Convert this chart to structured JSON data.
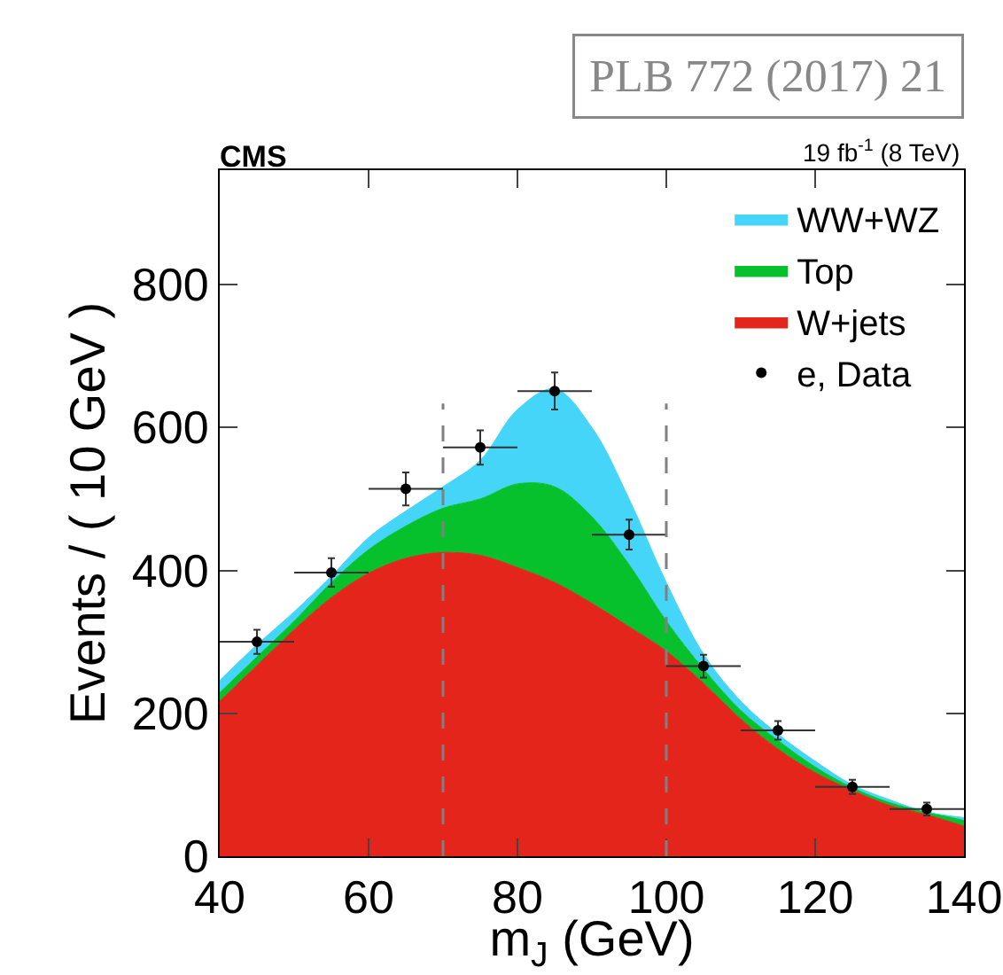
{
  "chart_data": {
    "type": "area",
    "title": "CMS",
    "subtitle": "19 fb$^{-1}$ (8 TeV)",
    "xlabel": "m$_{J}$ (GeV)",
    "ylabel": "Events / ( 10 GeV )",
    "annotations": [
      "PLB 772 (2017) 21"
    ],
    "x": [
      40,
      45,
      50,
      55,
      60,
      65,
      70,
      75,
      80,
      85,
      90,
      95,
      100,
      105,
      110,
      115,
      120,
      125,
      130,
      135,
      140
    ],
    "stacked": true,
    "series": [
      {
        "name": "W+jets",
        "color": "#e3251b",
        "values": [
          217,
          267,
          317,
          362,
          396,
          417,
          425,
          421,
          404,
          383,
          354,
          321,
          287,
          242,
          192,
          150,
          117,
          92,
          71,
          58,
          42
        ]
      },
      {
        "name": "Top",
        "color": "#06c12c",
        "values": [
          12,
          12,
          12,
          21,
          33,
          45,
          62,
          79,
          117,
          134,
          121,
          87,
          42,
          20,
          12,
          12,
          8,
          4,
          4,
          4,
          8
        ]
      },
      {
        "name": "WW+WZ",
        "color": "#45d5f9",
        "values": [
          17,
          17,
          13,
          9,
          17,
          21,
          30,
          54,
          104,
          137,
          125,
          92,
          54,
          21,
          13,
          9,
          8,
          4,
          4,
          0,
          4
        ]
      },
      {
        "name": "e, Data",
        "type": "scatter",
        "color": "#000000",
        "marker": "circle",
        "x": [
          45,
          55,
          65,
          75,
          85,
          95,
          105,
          115,
          125,
          135
        ],
        "values": [
          300,
          397,
          514,
          572,
          651,
          450,
          266,
          176,
          97,
          66
        ],
        "errors": [
          17,
          20,
          23,
          24,
          26,
          21,
          16,
          13,
          10,
          9
        ],
        "xerrors": [
          5,
          5,
          5,
          5,
          5,
          5,
          5,
          5,
          5,
          5
        ]
      }
    ],
    "ref_lines": [
      {
        "axis": "x",
        "value": 70,
        "color": "#808080",
        "line_style": "dashed"
      },
      {
        "axis": "x",
        "value": 100,
        "color": "#808080",
        "line_style": "dashed"
      }
    ],
    "xlim": [
      40,
      140
    ],
    "xticks": [
      40,
      60,
      80,
      100,
      120,
      140
    ],
    "ylim": [
      0,
      960
    ],
    "yticks": [
      0,
      200,
      400,
      600,
      800
    ],
    "grid": false,
    "legend": "top right"
  }
}
